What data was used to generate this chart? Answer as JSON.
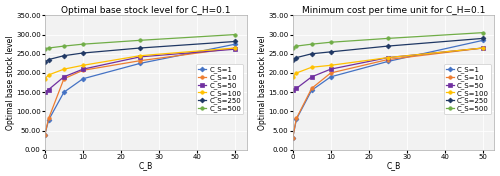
{
  "title1": "Optimal base stock level for C_H=0.1",
  "title2": "Minimum cost per time unit for C_H=0.1",
  "ylabel": "Optimal base stock level",
  "xlabel": "C_B",
  "x": [
    0,
    1,
    5,
    10,
    25,
    50
  ],
  "legend_labels": [
    "C_S=1",
    "C_S=10",
    "C_S=50",
    "C_S=100",
    "C_S=250",
    "C_S=500"
  ],
  "colors": [
    "#4472C4",
    "#ED7D31",
    "#7030A0",
    "#FFC000",
    "#203864",
    "#70AD47"
  ],
  "markers": [
    "D",
    "o",
    "s",
    "o",
    "D",
    "o"
  ],
  "markersize": 2.5,
  "left_data": [
    [
      40,
      78,
      150,
      185,
      225,
      275
    ],
    [
      40,
      82,
      185,
      207,
      232,
      265
    ],
    [
      150,
      157,
      190,
      210,
      242,
      262
    ],
    [
      185,
      195,
      210,
      220,
      245,
      265
    ],
    [
      228,
      235,
      245,
      252,
      265,
      282
    ],
    [
      263,
      265,
      270,
      275,
      285,
      300
    ]
  ],
  "right_data": [
    [
      3.0,
      8.0,
      15.5,
      19.0,
      23.0,
      28.5
    ],
    [
      3.0,
      8.2,
      16.0,
      20.0,
      23.5,
      26.5
    ],
    [
      15.5,
      16.0,
      19.0,
      21.0,
      24.0,
      26.5
    ],
    [
      19.0,
      20.0,
      21.5,
      22.0,
      24.0,
      26.5
    ],
    [
      23.5,
      24.0,
      25.0,
      25.5,
      27.0,
      29.0
    ],
    [
      26.5,
      27.0,
      27.5,
      28.0,
      29.0,
      30.5
    ]
  ],
  "ylim1": [
    0,
    350
  ],
  "ylim2": [
    0,
    35
  ],
  "yticks1": [
    0,
    50,
    100,
    150,
    200,
    250,
    300,
    350
  ],
  "yticks2": [
    0,
    5,
    10,
    15,
    20,
    25,
    30,
    35
  ],
  "xticks": [
    0,
    10,
    20,
    30,
    40,
    50
  ],
  "xlim": [
    0,
    53
  ],
  "plot_bg": "#F2F2F2",
  "fig_bg": "#FFFFFF",
  "grid_color": "#FFFFFF",
  "title_fontsize": 6.5,
  "label_fontsize": 5.5,
  "tick_fontsize": 5.0,
  "legend_fontsize": 5.0,
  "linewidth": 0.9
}
